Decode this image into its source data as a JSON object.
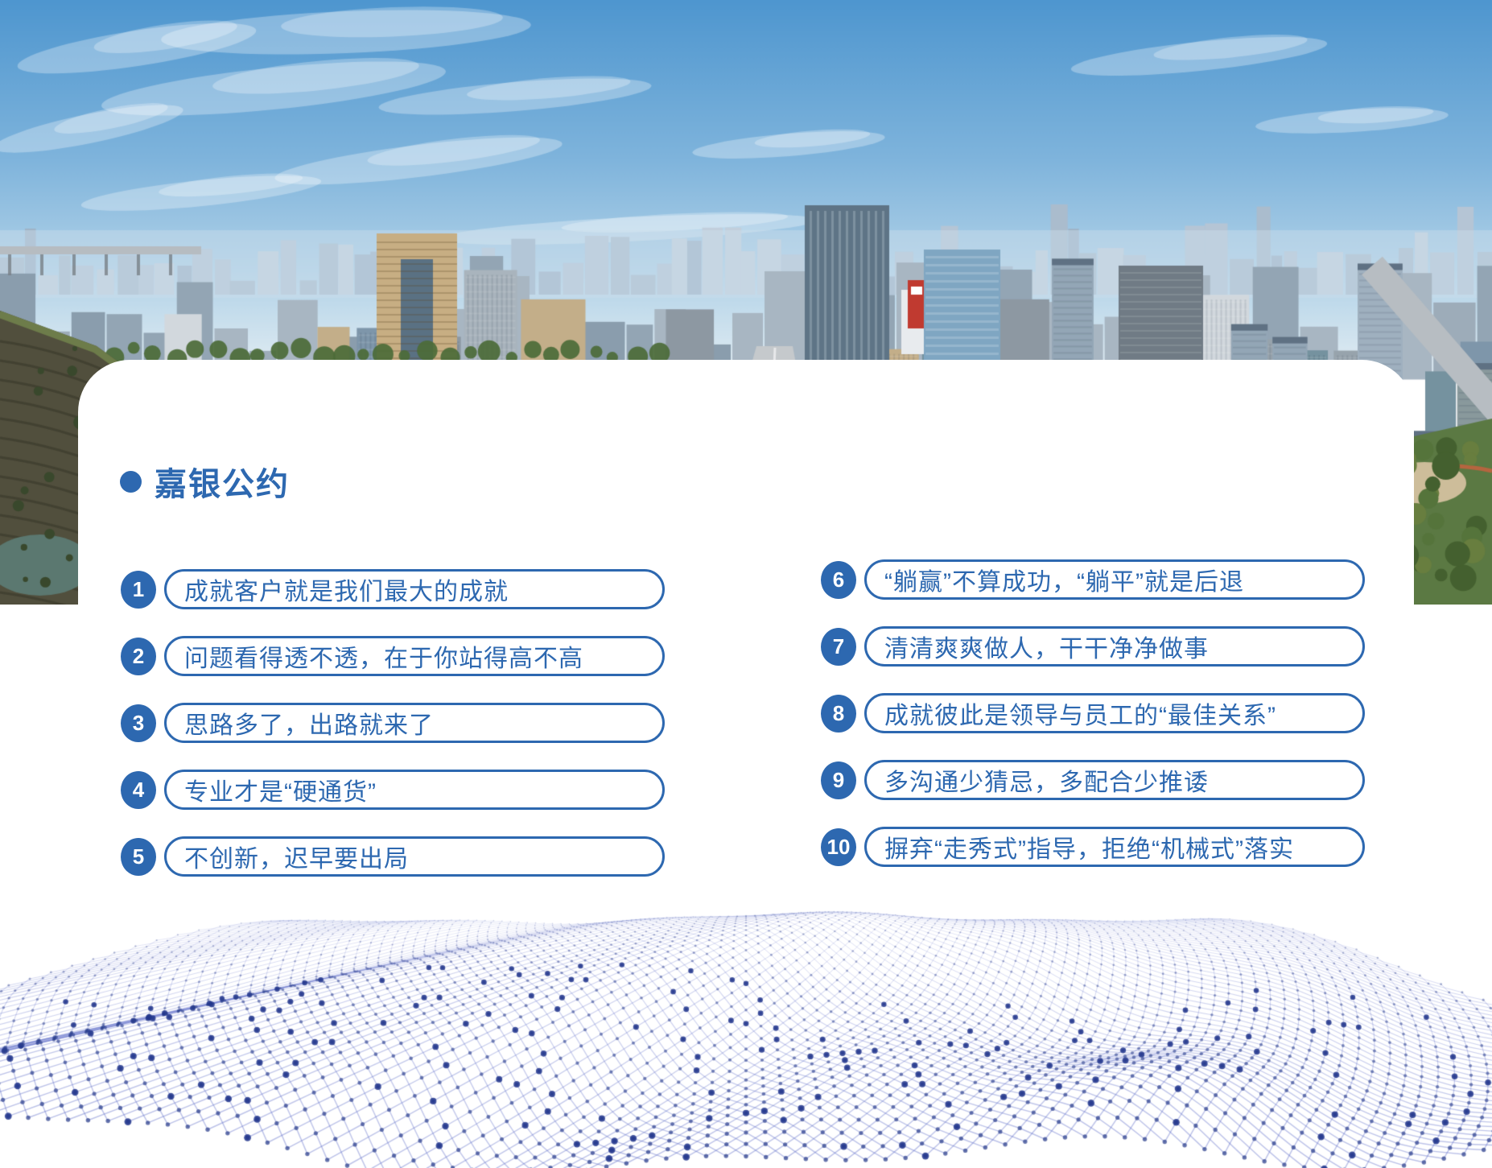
{
  "section": {
    "title": "嘉银公约"
  },
  "items": [
    {
      "num": "1",
      "text": "成就客户就是我们最大的成就"
    },
    {
      "num": "2",
      "text": "问题看得透不透，在于你站得高不高"
    },
    {
      "num": "3",
      "text": "思路多了，出路就来了"
    },
    {
      "num": "4",
      "text": "专业才是“硬通货”"
    },
    {
      "num": "5",
      "text": "不创新，迟早要出局"
    },
    {
      "num": "6",
      "text": "“躺赢”不算成功，“躺平”就是后退"
    },
    {
      "num": "7",
      "text": "清清爽爽做人，干干净净做事"
    },
    {
      "num": "8",
      "text": "成就彼此是领导与员工的“最佳关系”"
    },
    {
      "num": "9",
      "text": "多沟通少猜忌，多配合少推诿"
    },
    {
      "num": "10",
      "text": "摒弃“走秀式”指导，拒绝“机械式”落实"
    }
  ],
  "colors": {
    "accent": "#2D68B0",
    "badge_text": "#FFFFFF",
    "mesh": "#2B3F8C"
  }
}
